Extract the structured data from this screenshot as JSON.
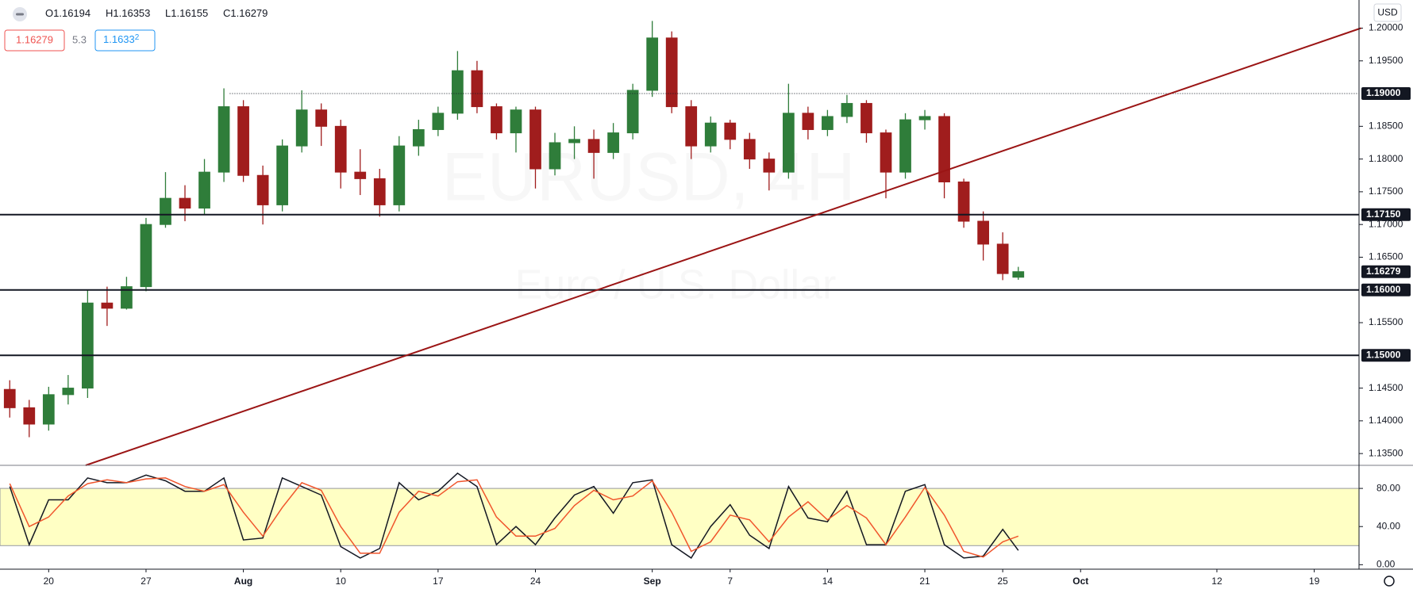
{
  "header": {
    "ohlc_labels": [
      "O",
      "H",
      "L",
      "C"
    ],
    "spread": 5.3,
    "ask": "1.1633",
    "ask_pip": "2"
  },
  "currency": "USD",
  "watermark": {
    "symbol": "EURUSD, 4H",
    "description": "Euro / U.S. Dollar"
  },
  "chart_data": [
    {
      "type": "candlestick",
      "x": [
        -2,
        -1,
        0,
        1,
        2,
        3,
        4,
        5,
        6,
        7,
        8,
        9,
        10,
        11,
        12,
        13,
        14,
        15,
        16,
        17,
        18,
        19,
        20,
        21,
        22,
        23,
        24,
        25,
        26,
        27,
        28,
        29,
        30,
        31,
        32,
        33,
        34,
        35,
        36,
        37,
        38,
        39,
        40,
        41,
        42,
        43,
        44,
        45,
        46,
        47,
        48,
        49,
        49.8
      ],
      "open": [
        1.1448,
        1.142,
        1.1395,
        1.144,
        1.145,
        1.158,
        1.1572,
        1.1605,
        1.17,
        1.174,
        1.1725,
        1.178,
        1.188,
        1.1775,
        1.173,
        1.182,
        1.1875,
        1.185,
        1.178,
        1.177,
        1.173,
        1.182,
        1.1845,
        1.187,
        1.1935,
        1.188,
        1.184,
        1.1875,
        1.1785,
        1.1825,
        1.183,
        1.181,
        1.184,
        1.1905,
        1.1985,
        1.188,
        1.182,
        1.1855,
        1.183,
        1.18,
        1.178,
        1.187,
        1.1845,
        1.1865,
        1.1885,
        1.184,
        1.178,
        1.186,
        1.1865,
        1.1765,
        1.1705,
        1.167,
        1.16194
      ],
      "high": [
        1.1462,
        1.1432,
        1.1452,
        1.147,
        1.16,
        1.1605,
        1.162,
        1.171,
        1.178,
        1.176,
        1.18,
        1.1908,
        1.189,
        1.179,
        1.183,
        1.1905,
        1.1885,
        1.186,
        1.1815,
        1.1785,
        1.1835,
        1.186,
        1.188,
        1.1965,
        1.195,
        1.1885,
        1.188,
        1.188,
        1.184,
        1.185,
        1.1845,
        1.1855,
        1.1915,
        1.2011,
        1.1995,
        1.189,
        1.1865,
        1.186,
        1.184,
        1.181,
        1.1915,
        1.188,
        1.1875,
        1.1898,
        1.189,
        1.1845,
        1.187,
        1.1875,
        1.187,
        1.177,
        1.172,
        1.1688,
        1.16353
      ],
      "low": [
        1.1405,
        1.1375,
        1.1385,
        1.1425,
        1.1435,
        1.1545,
        1.157,
        1.1598,
        1.1695,
        1.1705,
        1.1715,
        1.1765,
        1.1765,
        1.17,
        1.172,
        1.181,
        1.182,
        1.1755,
        1.1745,
        1.1712,
        1.172,
        1.1805,
        1.1835,
        1.186,
        1.187,
        1.183,
        1.181,
        1.1755,
        1.1775,
        1.18,
        1.177,
        1.18,
        1.183,
        1.1895,
        1.187,
        1.18,
        1.181,
        1.1815,
        1.1785,
        1.1752,
        1.177,
        1.183,
        1.1835,
        1.1855,
        1.1825,
        1.174,
        1.177,
        1.1845,
        1.174,
        1.1695,
        1.1645,
        1.1615,
        1.16155
      ],
      "close": [
        1.142,
        1.1395,
        1.144,
        1.145,
        1.158,
        1.1572,
        1.1605,
        1.17,
        1.174,
        1.1725,
        1.178,
        1.188,
        1.1775,
        1.173,
        1.182,
        1.1875,
        1.185,
        1.178,
        1.177,
        1.173,
        1.182,
        1.1845,
        1.187,
        1.1935,
        1.188,
        1.184,
        1.1875,
        1.1785,
        1.1825,
        1.183,
        1.181,
        1.184,
        1.1905,
        1.1985,
        1.188,
        1.182,
        1.1855,
        1.183,
        1.18,
        1.178,
        1.187,
        1.1845,
        1.1865,
        1.1885,
        1.184,
        1.178,
        1.186,
        1.1865,
        1.1765,
        1.1705,
        1.167,
        1.1625,
        1.16279
      ],
      "up_color": "#2f7d3a",
      "down_color": "#a01d1d",
      "xlim": [
        -2.5,
        67.3
      ],
      "ylim": [
        1.1332,
        1.2043
      ],
      "xticks": [
        {
          "value": 0,
          "label": "20"
        },
        {
          "value": 5,
          "label": "27"
        },
        {
          "value": 10,
          "label": "Aug"
        },
        {
          "value": 15,
          "label": "10"
        },
        {
          "value": 20,
          "label": "17"
        },
        {
          "value": 25,
          "label": "24"
        },
        {
          "value": 31,
          "label": "Sep"
        },
        {
          "value": 35,
          "label": "7"
        },
        {
          "value": 40,
          "label": "14"
        },
        {
          "value": 45,
          "label": "21"
        },
        {
          "value": 49,
          "label": "25"
        },
        {
          "value": 53,
          "label": "Oct"
        },
        {
          "value": 60,
          "label": "12"
        },
        {
          "value": 65,
          "label": "19"
        }
      ],
      "yticks": [
        {
          "value": 1.135,
          "label": "1.13500"
        },
        {
          "value": 1.14,
          "label": "1.14000"
        },
        {
          "value": 1.145,
          "label": "1.14500"
        },
        {
          "value": 1.155,
          "label": "1.15500"
        },
        {
          "value": 1.165,
          "label": "1.16500"
        },
        {
          "value": 1.17,
          "label": "1.17000"
        },
        {
          "value": 1.175,
          "label": "1.17500"
        },
        {
          "value": 1.18,
          "label": "1.18000"
        },
        {
          "value": 1.185,
          "label": "1.18500"
        },
        {
          "value": 1.195,
          "label": "1.19500"
        },
        {
          "value": 1.2,
          "label": "1.20000"
        }
      ],
      "levels": [
        {
          "value": 1.19,
          "label": "1.19000",
          "style": "dotted",
          "from": 9.3
        },
        {
          "value": 1.1715,
          "label": "1.17150",
          "style": "solid"
        },
        {
          "value": 1.16,
          "label": "1.16000",
          "style": "solid"
        },
        {
          "value": 1.15,
          "label": "1.15000",
          "style": "solid"
        }
      ],
      "trendline": {
        "x": [
          1.9,
          67.4
        ],
        "y": [
          1.1332,
          1.2
        ],
        "color": "#9b1515"
      }
    },
    {
      "type": "line",
      "x": [
        -2,
        -1,
        0,
        1,
        2,
        3,
        4,
        5,
        6,
        7,
        8,
        9,
        10,
        11,
        12,
        13,
        14,
        15,
        16,
        17,
        18,
        19,
        20,
        21,
        22,
        23,
        24,
        25,
        26,
        27,
        28,
        29,
        30,
        31,
        32,
        33,
        34,
        35,
        36,
        37,
        38,
        39,
        40,
        41,
        42,
        43,
        44,
        45,
        46,
        47,
        48,
        49,
        49.8
      ],
      "series": [
        {
          "color": "#131722",
          "values": [
            82,
            21,
            68,
            68,
            91,
            86,
            86,
            94,
            88,
            77,
            77,
            91,
            26,
            28,
            91,
            82,
            73,
            19,
            7,
            17,
            86,
            68,
            77,
            96,
            82,
            21,
            40,
            21,
            49,
            73,
            82,
            54,
            86,
            89,
            21,
            7,
            40,
            63,
            31,
            17,
            82,
            49,
            45,
            77,
            21,
            21,
            77,
            84,
            21,
            7,
            9,
            37,
            15
          ]
        },
        {
          "color": "#f0552c",
          "values": [
            85,
            40,
            50,
            72,
            85,
            89,
            86,
            90,
            91,
            82,
            77,
            84,
            55,
            30,
            60,
            86,
            78,
            40,
            12,
            12,
            55,
            77,
            72,
            87,
            89,
            50,
            30,
            30,
            38,
            62,
            78,
            68,
            72,
            88,
            55,
            14,
            24,
            52,
            47,
            24,
            50,
            66,
            47,
            62,
            49,
            21,
            50,
            81,
            52,
            14,
            8,
            24,
            30
          ]
        }
      ],
      "band": [
        20,
        80
      ],
      "band_color": "#ffffc4",
      "xlim": [
        -2.5,
        67.3
      ],
      "ylim": [
        -4.7,
        104.2
      ],
      "yticks": [
        {
          "value": 0,
          "label": "0.00"
        },
        {
          "value": 40,
          "label": "40.00"
        },
        {
          "value": 80,
          "label": "80.00"
        }
      ]
    }
  ]
}
